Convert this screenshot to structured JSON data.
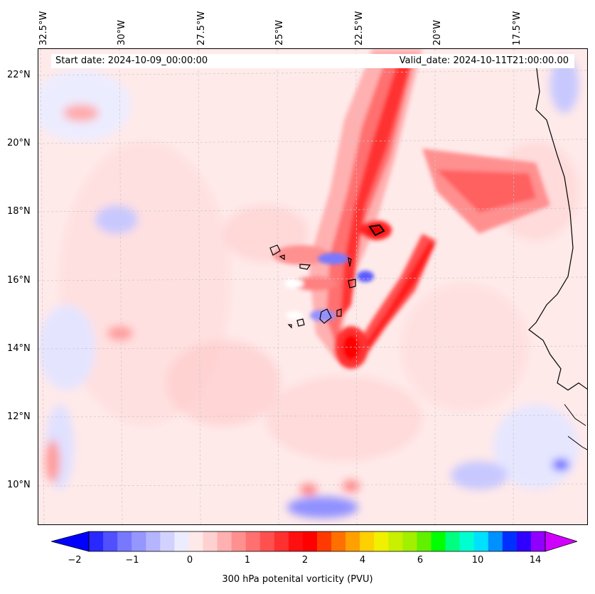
{
  "header": {
    "start_date": "Start date: 2024-10-09_00:00:00",
    "valid_date": "Valid_date: 2024-10-11T21:00:00.00"
  },
  "lon_labels": [
    "32.5°W",
    "30°W",
    "27.5°W",
    "25°W",
    "22.5°W",
    "20°W",
    "17.5°W"
  ],
  "lat_labels": [
    "22°N",
    "20°N",
    "18°N",
    "16°N",
    "14°N",
    "12°N",
    "10°N"
  ],
  "colorbar": {
    "label": "300 hPa potenital vorticity (PVU)",
    "ticks": [
      "−2",
      "−1",
      "0",
      "1",
      "2",
      "4",
      "6",
      "10",
      "14"
    ],
    "colors": [
      "#0000ff",
      "#2828ff",
      "#5050ff",
      "#7878ff",
      "#9696ff",
      "#b4b4ff",
      "#d2d2ff",
      "#ececff",
      "#ffe8e8",
      "#ffd0d0",
      "#ffb0b0",
      "#ff9090",
      "#ff7070",
      "#ff5050",
      "#ff3030",
      "#ff1010",
      "#ff0000",
      "#ff3a00",
      "#ff7000",
      "#ffa000",
      "#ffd000",
      "#f0f000",
      "#c8f000",
      "#a0f000",
      "#60f000",
      "#00ff00",
      "#00ff80",
      "#00ffd0",
      "#00e0ff",
      "#0090ff",
      "#0030ff",
      "#3000ff",
      "#9000ff",
      "#d000ff"
    ]
  }
}
